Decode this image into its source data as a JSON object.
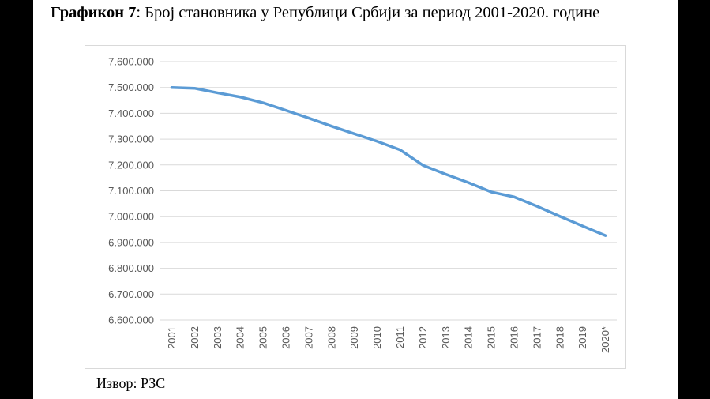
{
  "caption": {
    "label": "Графикон 7",
    "text": ": Број становника у Републици Србији за период 2001-2020. године"
  },
  "source": "Извор: РЗС",
  "colors": {
    "line": "#5b9bd5",
    "grid": "#d9d9d9",
    "tick_text": "#595959"
  },
  "chart_data": {
    "type": "line",
    "grid": true,
    "legend": "none",
    "categories": [
      "2001",
      "2002",
      "2003",
      "2004",
      "2005",
      "2006",
      "2007",
      "2008",
      "2009",
      "2010",
      "2011",
      "2012",
      "2013",
      "2014",
      "2015",
      "2016",
      "2017",
      "2018",
      "2019",
      "2020*"
    ],
    "series": [
      {
        "values": [
          7500031,
          7496982,
          7479437,
          7463157,
          7440769,
          7411569,
          7381579,
          7350222,
          7320807,
          7291436,
          7258753,
          7199077,
          7164132,
          7131787,
          7095383,
          7076372,
          7040272,
          7001444,
          6963764,
          6926705
        ]
      }
    ],
    "ylim": [
      6600000,
      7600000
    ],
    "yticks": [
      6600000,
      6700000,
      6800000,
      6900000,
      7000000,
      7100000,
      7200000,
      7300000,
      7400000,
      7500000,
      7600000
    ],
    "ytick_labels": [
      "6.600.000",
      "6.700.000",
      "6.800.000",
      "6.900.000",
      "7.000.000",
      "7.100.000",
      "7.200.000",
      "7.300.000",
      "7.400.000",
      "7.500.000",
      "7.600.000"
    ]
  }
}
